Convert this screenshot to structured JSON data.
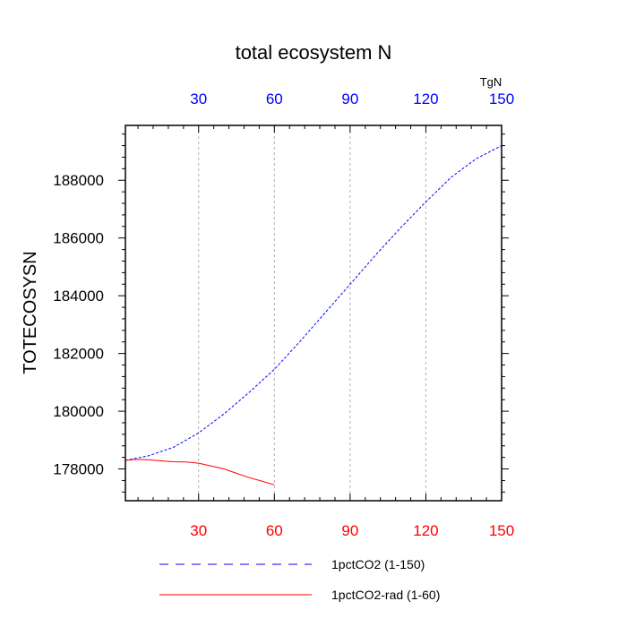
{
  "chart_data": {
    "type": "line",
    "title": "total ecosystem N",
    "ylabel": "TOTECOSYSN",
    "top_axis_unit": "TgN",
    "xlim": [
      1,
      150
    ],
    "ylim": [
      176900,
      189900
    ],
    "xticks": [
      30,
      60,
      90,
      120,
      150
    ],
    "xtick_labels": [
      "30",
      "60",
      "90",
      "120",
      "150"
    ],
    "yticks": [
      178000,
      180000,
      182000,
      184000,
      186000,
      188000
    ],
    "ytick_labels": [
      "178000",
      "180000",
      "182000",
      "184000",
      "186000",
      "188000"
    ],
    "grid": "vertical dashed at x ticks",
    "colors": {
      "bottom_axis_labels": "#ff0000",
      "top_axis_labels": "#0000ff"
    },
    "series": [
      {
        "name": "1pctCO2 (1-150)",
        "color": "#0000ff",
        "style": "dashed",
        "x": [
          1,
          10,
          20,
          30,
          40,
          50,
          60,
          70,
          80,
          90,
          100,
          110,
          120,
          130,
          140,
          150
        ],
        "y": [
          178300,
          178450,
          178750,
          179250,
          179900,
          180650,
          181450,
          182400,
          183400,
          184400,
          185400,
          186350,
          187250,
          188100,
          188750,
          189200
        ]
      },
      {
        "name": "1pctCO2-rad (1-60)",
        "color": "#ff0000",
        "style": "solid",
        "x": [
          1,
          5,
          10,
          15,
          20,
          25,
          30,
          35,
          40,
          45,
          50,
          55,
          60
        ],
        "y": [
          178300,
          178330,
          178320,
          178280,
          178250,
          178240,
          178200,
          178100,
          178000,
          177850,
          177700,
          177580,
          177450
        ]
      }
    ],
    "legend": [
      {
        "label": "1pctCO2 (1-150)",
        "color": "#0000ff",
        "style": "dashed"
      },
      {
        "label": "1pctCO2-rad (1-60)",
        "color": "#ff0000",
        "style": "solid"
      }
    ]
  }
}
